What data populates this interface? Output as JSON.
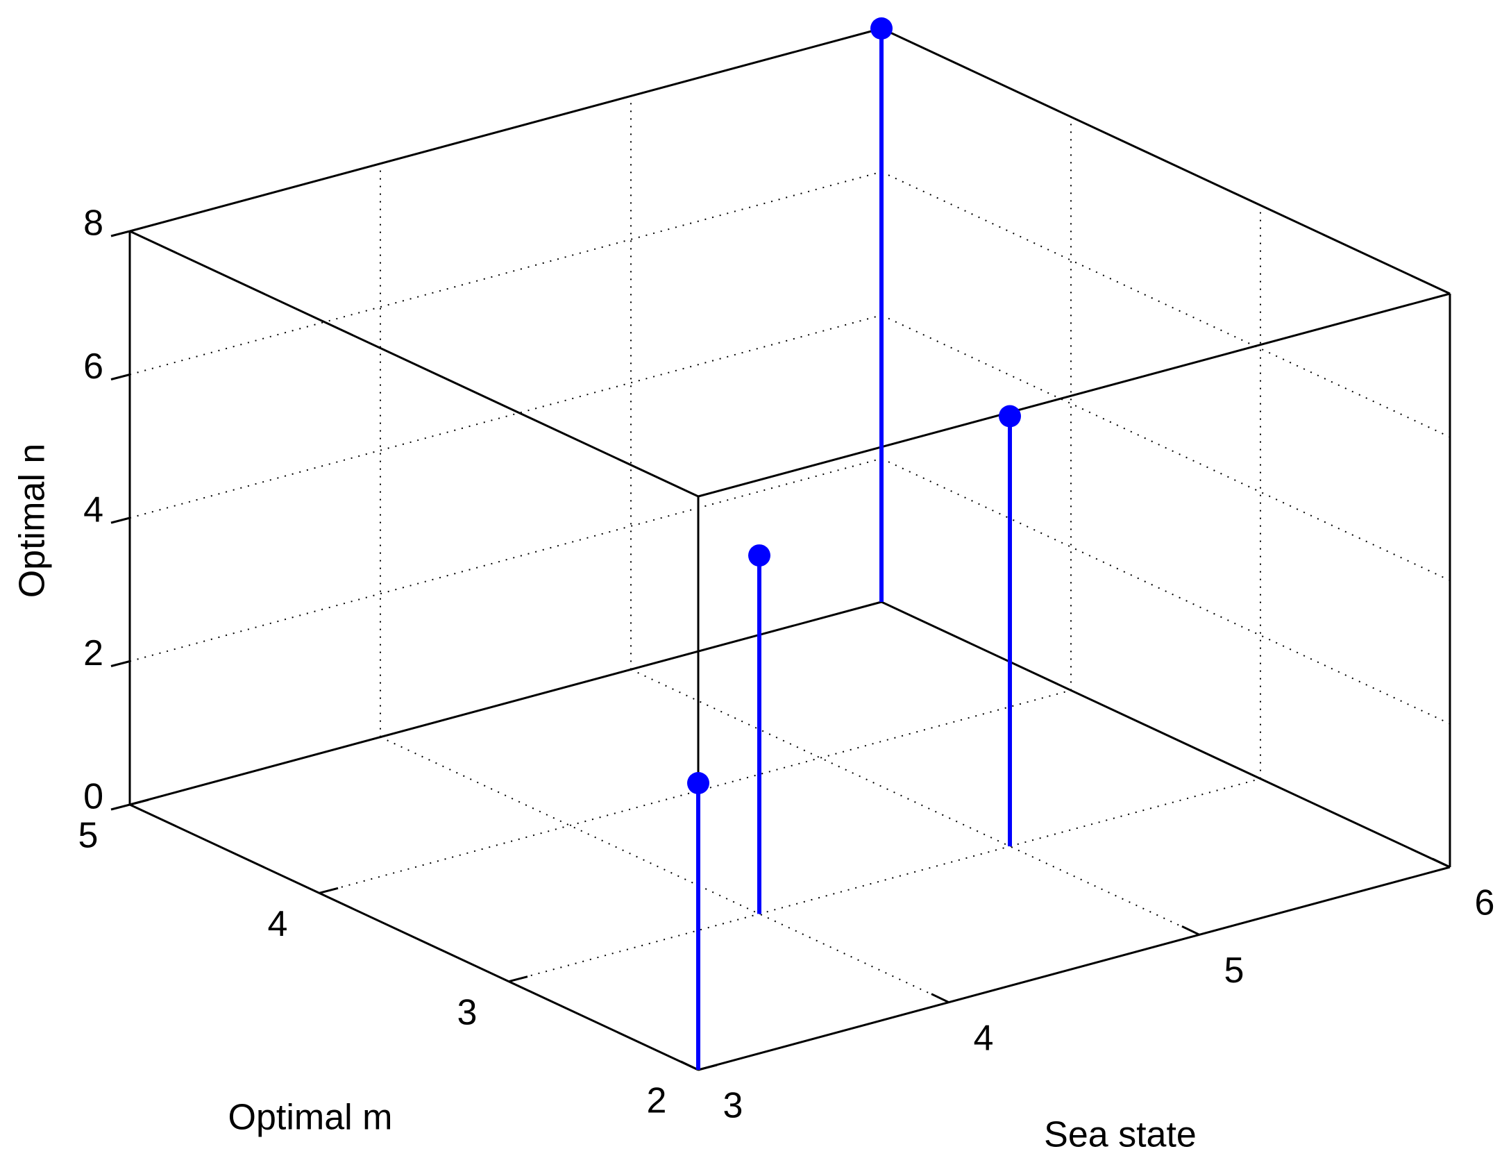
{
  "chart_data": {
    "type": "stem3",
    "x": [
      3,
      4,
      6,
      5
    ],
    "y": [
      2,
      3,
      5,
      3
    ],
    "z": [
      4,
      5,
      8,
      6
    ],
    "color": "#0000ff",
    "xlabel": "Sea state",
    "ylabel": "Optimal m",
    "zlabel": "Optimal n",
    "xlim": [
      3,
      6
    ],
    "ylim": [
      2,
      5
    ],
    "zlim": [
      0,
      8
    ],
    "xticks": [
      3,
      4,
      5,
      6
    ],
    "yticks": [
      2,
      3,
      4,
      5
    ],
    "zticks": [
      0,
      2,
      4,
      6,
      8
    ],
    "grid": true
  }
}
